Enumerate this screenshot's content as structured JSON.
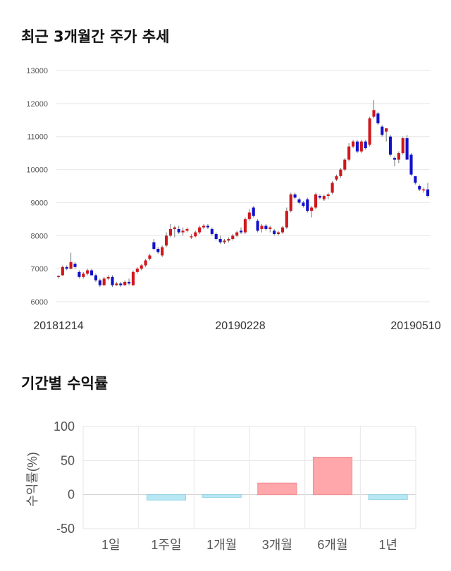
{
  "section1": {
    "title": "최근 3개월간 주가 추세"
  },
  "section2": {
    "title": "기간별 수익률"
  },
  "chart_data": [
    {
      "type": "candlestick",
      "ylim": [
        6000,
        13000
      ],
      "yticks": [
        6000,
        7000,
        8000,
        9000,
        10000,
        11000,
        12000,
        13000
      ],
      "xticks": [
        "20181214",
        "20190228",
        "20190510"
      ],
      "up_color": "#d0161b",
      "down_color": "#1111cc",
      "grid": true,
      "candles": [
        [
          6750,
          6800,
          6700,
          6780
        ],
        [
          6800,
          7100,
          6780,
          7050
        ],
        [
          7050,
          7100,
          6950,
          7000
        ],
        [
          7000,
          7480,
          6980,
          7200
        ],
        [
          7150,
          7200,
          7000,
          7050
        ],
        [
          6900,
          6950,
          6700,
          6750
        ],
        [
          6750,
          6900,
          6700,
          6850
        ],
        [
          6850,
          7000,
          6800,
          6950
        ],
        [
          6950,
          7000,
          6800,
          6800
        ],
        [
          6800,
          6850,
          6600,
          6650
        ],
        [
          6650,
          6700,
          6450,
          6500
        ],
        [
          6500,
          6750,
          6480,
          6700
        ],
        [
          6700,
          6800,
          6650,
          6750
        ],
        [
          6750,
          6800,
          6450,
          6500
        ],
        [
          6500,
          6600,
          6480,
          6550
        ],
        [
          6550,
          6600,
          6450,
          6500
        ],
        [
          6500,
          6650,
          6480,
          6600
        ],
        [
          6600,
          6700,
          6500,
          6550
        ],
        [
          6500,
          6950,
          6480,
          6900
        ],
        [
          6900,
          7050,
          6850,
          7000
        ],
        [
          7000,
          7150,
          6950,
          7100
        ],
        [
          7100,
          7300,
          7050,
          7250
        ],
        [
          7300,
          7450,
          7250,
          7400
        ],
        [
          7800,
          7900,
          7550,
          7600
        ],
        [
          7600,
          7650,
          7450,
          7500
        ],
        [
          7400,
          7700,
          7350,
          7650
        ],
        [
          7700,
          8100,
          7650,
          8000
        ],
        [
          8000,
          8350,
          7950,
          8200
        ],
        [
          8200,
          8300,
          7950,
          8250
        ],
        [
          8200,
          8300,
          8050,
          8100
        ],
        [
          8100,
          8250,
          8000,
          8150
        ],
        [
          8150,
          8250,
          8100,
          8200
        ],
        [
          7950,
          8050,
          7900,
          7980
        ],
        [
          7980,
          8150,
          7950,
          8100
        ],
        [
          8100,
          8300,
          8050,
          8250
        ],
        [
          8250,
          8350,
          8200,
          8300
        ],
        [
          8300,
          8350,
          8200,
          8250
        ],
        [
          8200,
          8250,
          8000,
          8050
        ],
        [
          8050,
          8100,
          7850,
          7900
        ],
        [
          7900,
          8000,
          7750,
          7800
        ],
        [
          7800,
          7900,
          7750,
          7850
        ],
        [
          7850,
          7950,
          7800,
          7900
        ],
        [
          7900,
          8050,
          7850,
          8000
        ],
        [
          8000,
          8150,
          7950,
          8100
        ],
        [
          8150,
          8250,
          8050,
          8100
        ],
        [
          8100,
          8550,
          8050,
          8500
        ],
        [
          8500,
          8800,
          8450,
          8700
        ],
        [
          8850,
          8900,
          8550,
          8600
        ],
        [
          8450,
          8500,
          8100,
          8150
        ],
        [
          8200,
          8350,
          8100,
          8300
        ],
        [
          8300,
          8350,
          8150,
          8200
        ],
        [
          8200,
          8300,
          8100,
          8250
        ],
        [
          8150,
          8200,
          8000,
          8050
        ],
        [
          8050,
          8150,
          8000,
          8100
        ],
        [
          8100,
          8300,
          8050,
          8250
        ],
        [
          8250,
          8850,
          8200,
          8750
        ],
        [
          8750,
          9300,
          8700,
          9250
        ],
        [
          9250,
          9300,
          9100,
          9150
        ],
        [
          9100,
          9150,
          8950,
          9000
        ],
        [
          9000,
          9050,
          8850,
          8900
        ],
        [
          9100,
          9150,
          8700,
          8750
        ],
        [
          8750,
          8900,
          8550,
          8850
        ],
        [
          8850,
          9300,
          8800,
          9250
        ],
        [
          9200,
          9250,
          9100,
          9150
        ],
        [
          9100,
          9250,
          9050,
          9200
        ],
        [
          9200,
          9300,
          9100,
          9250
        ],
        [
          9300,
          9650,
          9250,
          9600
        ],
        [
          9700,
          9850,
          9650,
          9800
        ],
        [
          9800,
          10050,
          9750,
          10000
        ],
        [
          10000,
          10350,
          9950,
          10300
        ],
        [
          10300,
          10800,
          10250,
          10700
        ],
        [
          10700,
          10900,
          10650,
          10850
        ],
        [
          10850,
          10900,
          10500,
          10550
        ],
        [
          10550,
          10900,
          10500,
          10850
        ],
        [
          10850,
          10900,
          10600,
          10650
        ],
        [
          10750,
          11600,
          10700,
          11550
        ],
        [
          11600,
          12100,
          11550,
          11800
        ],
        [
          11700,
          11750,
          11350,
          11400
        ],
        [
          11300,
          11350,
          11000,
          11050
        ],
        [
          11150,
          11250,
          10850,
          11250
        ],
        [
          11000,
          11050,
          10400,
          10450
        ],
        [
          10350,
          10400,
          10100,
          10300
        ],
        [
          10300,
          10550,
          10200,
          10500
        ],
        [
          10500,
          11000,
          10450,
          10950
        ],
        [
          10950,
          11050,
          10300,
          10300
        ],
        [
          10450,
          10500,
          9800,
          9850
        ],
        [
          9800,
          9800,
          9550,
          9600
        ],
        [
          9500,
          9550,
          9350,
          9400
        ],
        [
          9400,
          9450,
          9300,
          9400
        ],
        [
          9400,
          9600,
          9150,
          9200
        ]
      ]
    },
    {
      "type": "bar",
      "ylabel": "수익률(%)",
      "ylim": [
        -50,
        100
      ],
      "yticks": [
        -50,
        0,
        50,
        100
      ],
      "categories": [
        "1일",
        "1주일",
        "1개월",
        "3개월",
        "6개월",
        "1년"
      ],
      "values": [
        0,
        -8,
        -4,
        17,
        55,
        -7
      ],
      "pos_color": "#ffa7aa",
      "neg_color": "#b8e8f4",
      "grid": true
    }
  ]
}
